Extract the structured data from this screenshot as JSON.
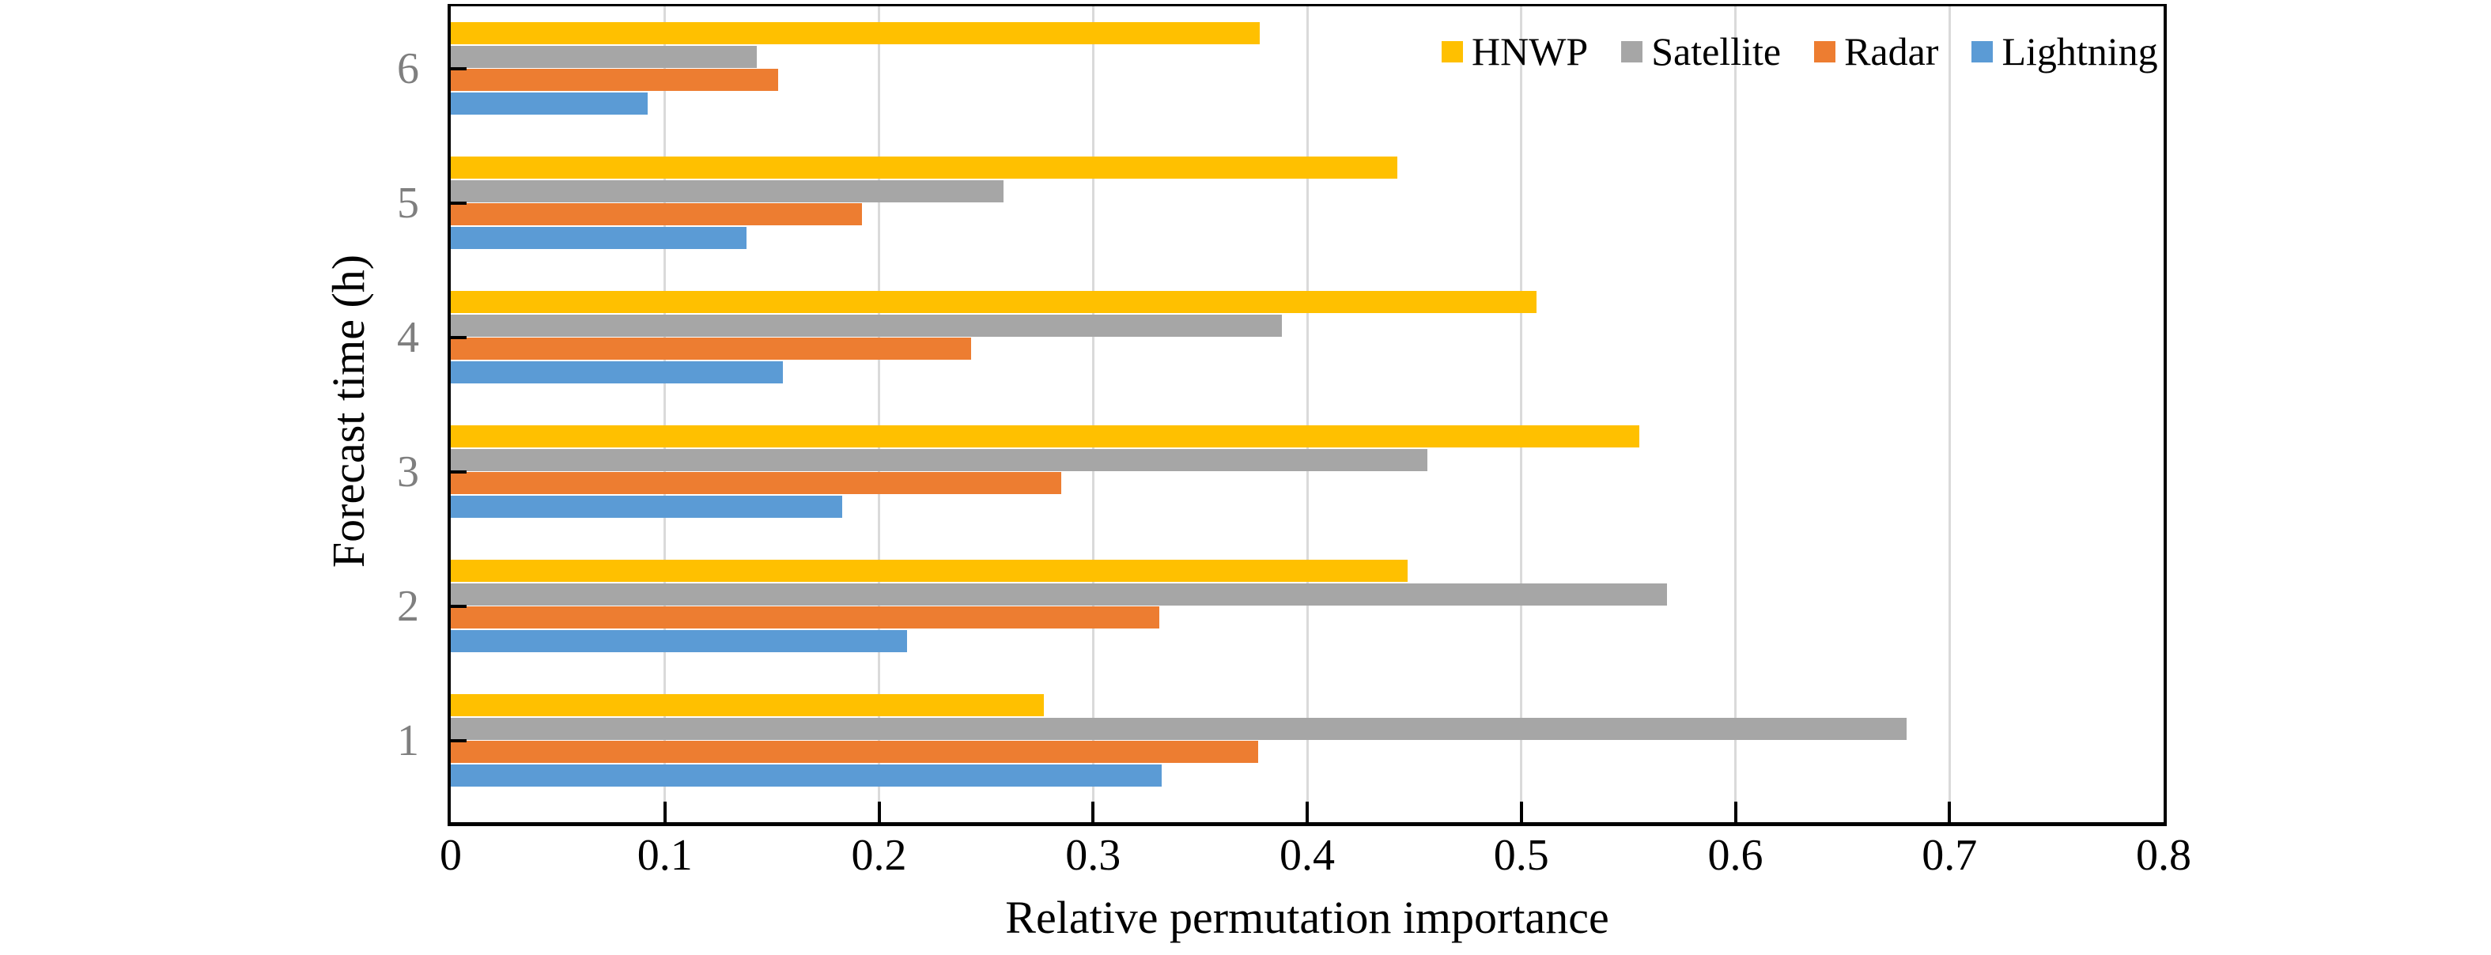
{
  "figure": {
    "background_color": "#FFFFFF",
    "axis_color": "#000000",
    "grid_color": "#DADADA",
    "xtick_label_color": "#000000",
    "ytick_label_color": "#7F7F7F"
  },
  "chart_data": {
    "type": "bar",
    "orientation": "horizontal",
    "title": "",
    "xlabel": "Relative permutation importance",
    "ylabel": "Forecast time (h)",
    "xlim": [
      0,
      0.8
    ],
    "xtick_values": [
      0,
      0.1,
      0.2,
      0.3,
      0.4,
      0.5,
      0.6,
      0.7,
      0.8
    ],
    "xtick_labels": [
      "0",
      "0.1",
      "0.2",
      "0.3",
      "0.4",
      "0.5",
      "0.6",
      "0.7",
      "0.8"
    ],
    "gridline_values": [
      0.1,
      0.2,
      0.3,
      0.4,
      0.5,
      0.6,
      0.7
    ],
    "grid": "vertical-only",
    "categories": [
      "6",
      "5",
      "4",
      "3",
      "2",
      "1"
    ],
    "category_order": "top-to-bottom",
    "series": [
      {
        "name": "HNWP",
        "color": "#FFC000",
        "values": [
          0.378,
          0.442,
          0.507,
          0.555,
          0.447,
          0.277
        ]
      },
      {
        "name": "Satellite",
        "color": "#A6A6A6",
        "values": [
          0.143,
          0.258,
          0.388,
          0.456,
          0.568,
          0.68
        ]
      },
      {
        "name": "Radar",
        "color": "#ED7D31",
        "values": [
          0.153,
          0.192,
          0.243,
          0.285,
          0.331,
          0.377
        ]
      },
      {
        "name": "Lightning",
        "color": "#5B9BD5",
        "values": [
          0.092,
          0.138,
          0.155,
          0.183,
          0.213,
          0.332
        ]
      }
    ],
    "legend": {
      "position": "top-right-inside",
      "entries": [
        "HNWP",
        "Satellite",
        "Radar",
        "Lightning"
      ]
    }
  }
}
